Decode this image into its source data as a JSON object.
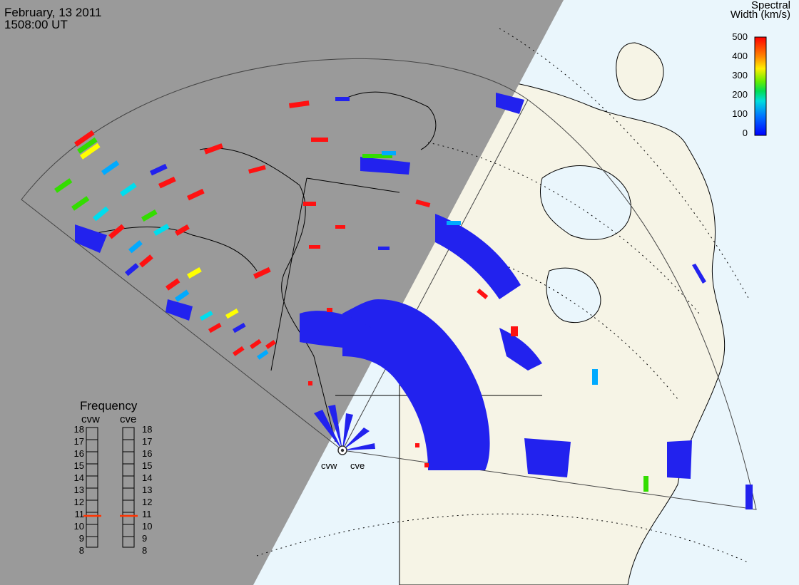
{
  "header": {
    "date": "February, 13 2011",
    "time": "1508:00 UT"
  },
  "colorbar": {
    "title_line1": "Spectral",
    "title_line2": "Width (km/s)",
    "ticks": [
      "500",
      "400",
      "300",
      "200",
      "100",
      "0"
    ],
    "colors": [
      "#ff0000",
      "#ff6600",
      "#ffaa00",
      "#ffff00",
      "#aaee00",
      "#33dd00",
      "#00ee88",
      "#00ddee",
      "#00aaff",
      "#0066ff",
      "#0000ff"
    ]
  },
  "frequency_panel": {
    "title": "Frequency",
    "radars": [
      "cvw",
      "cve"
    ],
    "levels": [
      "18",
      "17",
      "16",
      "15",
      "14",
      "13",
      "12",
      "11",
      "10",
      "9",
      "8"
    ],
    "marker_color": "#ff3300",
    "cvw_marker": 11,
    "cve_marker": 11
  },
  "radars": {
    "cvw_label": "cvw",
    "cve_label": "cve"
  },
  "colors": {
    "night": "#9a9a9a",
    "ocean_day": "#eaf6fc",
    "land_day": "#f6f4e6",
    "scatter_blue": "#2222ee",
    "scatter_red": "#ff1111"
  }
}
